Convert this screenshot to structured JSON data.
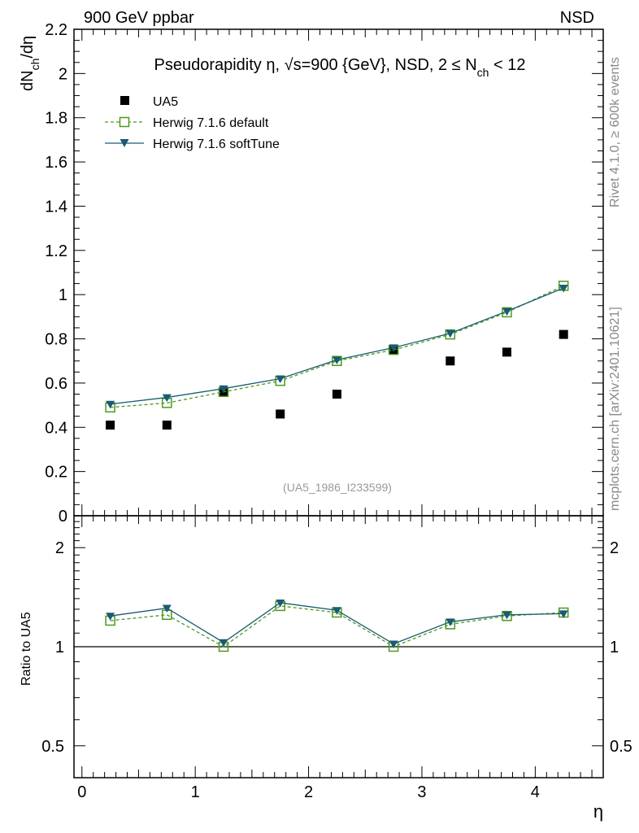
{
  "header": {
    "left": "900 GeV ppbar",
    "right": "NSD"
  },
  "side_labels": {
    "rivet": "Rivet 4.1.0, ≥ 600k events",
    "mcplots": "mcplots.cern.ch [arXiv:2401.10621]"
  },
  "chart_data": [
    {
      "type": "scatter",
      "title": "Pseudorapidity η, √s=900 {GeV}, NSD, 2 ≤ N_ch < 12",
      "title_parts": {
        "prefix": "Pseudorapidity ",
        "eta": "η",
        "mid": ", √s=900 {GeV}, NSD, 2 ≤ N",
        "sub": "ch",
        "suffix": " < 12"
      },
      "ylabel": "dN_ch/dη",
      "ylabel_parts": {
        "a": "dN",
        "sub": "ch",
        "b": "/dη"
      },
      "watermark": "(UA5_1986_I233599)",
      "xlim": [
        -0.07,
        4.6
      ],
      "ylim": [
        0,
        2.2
      ],
      "yticks": [
        0,
        0.2,
        0.4,
        0.6,
        0.8,
        1,
        1.2,
        1.4,
        1.6,
        1.8,
        2,
        2.2
      ],
      "ytick_labels": [
        "0",
        "0.2",
        "0.4",
        "0.6",
        "0.8",
        "1",
        "1.2",
        "1.4",
        "1.6",
        "1.8",
        "2",
        "2.2"
      ],
      "x": [
        0.25,
        0.75,
        1.25,
        1.75,
        2.25,
        2.75,
        3.25,
        3.75,
        4.25
      ],
      "legend_position": "top-left",
      "series": [
        {
          "name": "UA5",
          "style": "data",
          "color": "#000000",
          "values": [
            0.41,
            0.41,
            0.56,
            0.46,
            0.55,
            0.75,
            0.7,
            0.74,
            0.82
          ]
        },
        {
          "name": "Herwig 7.1.6 default",
          "style": "open-square-dashed",
          "color": "#4a9a1e",
          "values": [
            0.49,
            0.51,
            0.56,
            0.61,
            0.7,
            0.75,
            0.82,
            0.92,
            1.04
          ]
        },
        {
          "name": "Herwig 7.1.6 softTune",
          "style": "triangle-solid",
          "color": "#1b5a73",
          "values": [
            0.505,
            0.535,
            0.575,
            0.62,
            0.705,
            0.76,
            0.825,
            0.925,
            1.03
          ]
        }
      ]
    },
    {
      "type": "line",
      "ylabel": "Ratio to UA5",
      "xlabel": "η",
      "scale": "log",
      "ylim": [
        0.4,
        2.5
      ],
      "yticks_major": [
        0.5,
        1,
        2
      ],
      "ytick_labels": [
        "0.5",
        "1",
        "2"
      ],
      "yticks_minor": [
        0.6,
        0.7,
        0.8,
        0.9,
        1.1,
        1.2,
        1.3,
        1.4,
        1.5,
        1.6,
        1.7,
        1.8,
        1.9,
        2.1,
        2.2,
        2.3,
        2.4
      ],
      "xticks": [
        0,
        1,
        2,
        3,
        4
      ],
      "xtick_labels": [
        "0",
        "1",
        "2",
        "3",
        "4"
      ],
      "reference": 1,
      "x": [
        0.25,
        0.75,
        1.25,
        1.75,
        2.25,
        2.75,
        3.25,
        3.75,
        4.25
      ],
      "series": [
        {
          "name": "Herwig 7.1.6 default",
          "color": "#4a9a1e",
          "values": [
            1.2,
            1.25,
            1.0,
            1.33,
            1.27,
            1.0,
            1.17,
            1.24,
            1.27
          ]
        },
        {
          "name": "Herwig 7.1.6 softTune",
          "color": "#1b5a73",
          "values": [
            1.24,
            1.31,
            1.03,
            1.36,
            1.29,
            1.02,
            1.19,
            1.25,
            1.26
          ]
        }
      ]
    }
  ]
}
